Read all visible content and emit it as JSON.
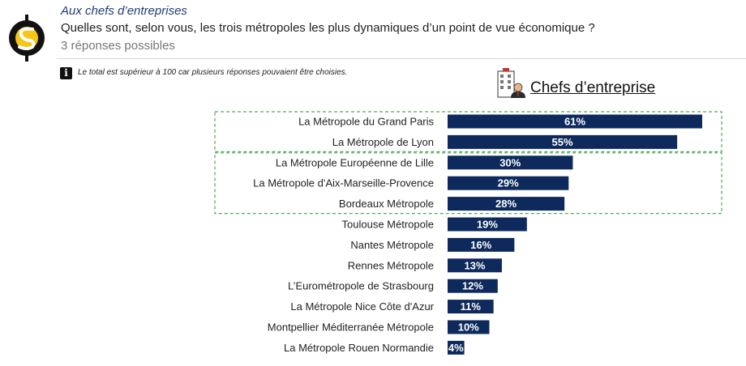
{
  "header": {
    "audience": "Aux chefs d’entreprises",
    "question": "Quelles sont, selon vous, les trois métropoles les plus dynamiques d’un point de vue économique ?",
    "subnote": "3 réponses possibles"
  },
  "info": {
    "icon": "info-icon",
    "text": "Le total est supérieur à 100 car plusieurs réponses pouvaient être choisies."
  },
  "panel": {
    "icon": "office-building-person-icon",
    "title": "Chefs d’entreprise"
  },
  "colors": {
    "bar": "#0e2a5c",
    "group_border": "#55a85a",
    "logo_bg": "#111111",
    "logo_accent": "#f5c518"
  },
  "chart_data": {
    "type": "bar",
    "orientation": "horizontal",
    "categories": [
      "La Métropole du Grand Paris",
      "La Métropole de Lyon",
      "La Métropole Européenne de Lille",
      "La Métropole d'Aix-Marseille-Provence",
      "Bordeaux Métropole",
      "Toulouse Métropole",
      "Nantes Métropole",
      "Rennes Métropole",
      "L’Eurométropole de Strasbourg",
      "La Métropole Nice Côte d'Azur",
      "Montpellier Méditerranée Métropole",
      "La Métropole Rouen Normandie"
    ],
    "values": [
      61,
      55,
      30,
      29,
      28,
      19,
      16,
      13,
      12,
      11,
      10,
      4
    ],
    "labels": [
      "61%",
      "55%",
      "30%",
      "29%",
      "28%",
      "19%",
      "16%",
      "13%",
      "12%",
      "11%",
      "10%",
      "4%"
    ],
    "unit": "%",
    "title": "",
    "xlabel": "",
    "ylabel": "",
    "xlim": [
      0,
      61
    ],
    "grid": false,
    "legend": "none",
    "highlight_groups": [
      [
        0,
        1
      ],
      [
        2,
        4
      ]
    ]
  }
}
